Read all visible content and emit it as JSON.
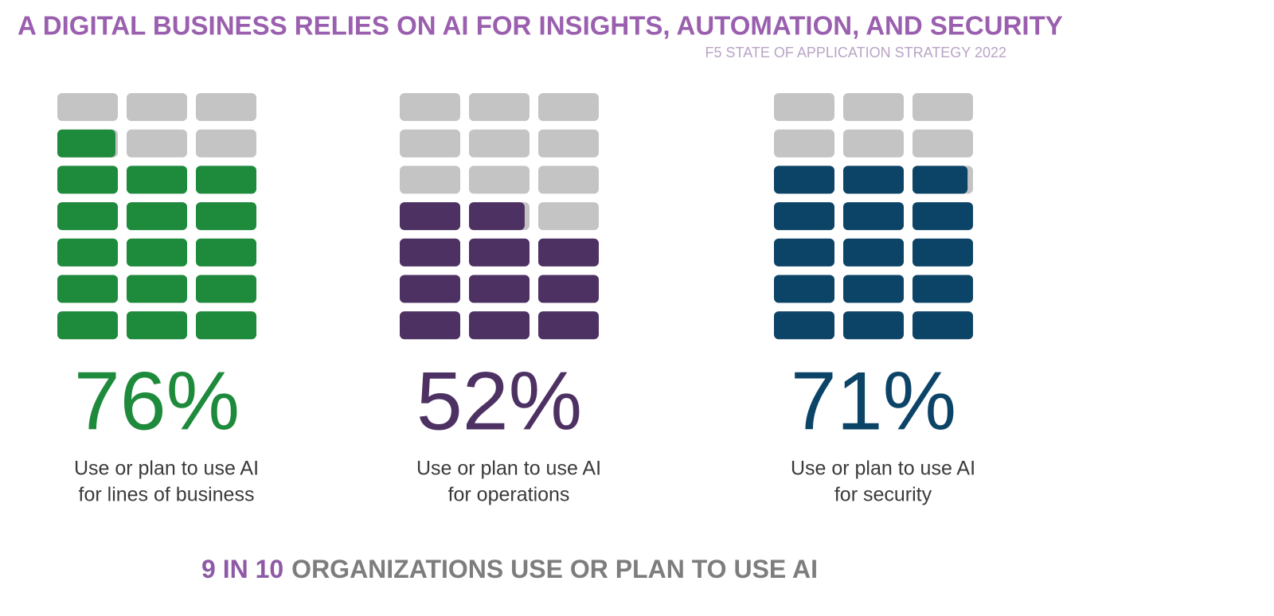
{
  "title": "A DIGITAL BUSINESS RELIES ON AI FOR INSIGHTS, AUTOMATION, AND SECURITY",
  "source": "F5 STATE OF APPLICATION STRATEGY 2022",
  "footer": {
    "highlight": "9 IN 10",
    "text": "ORGANIZATIONS USE OR PLAN TO USE AI"
  },
  "chart_data": [
    {
      "type": "waffle",
      "value": 76,
      "value_label": "76%",
      "color": "#1e8a3c",
      "caption": [
        "Use or plan to use AI",
        "for lines of business"
      ]
    },
    {
      "type": "waffle",
      "value": 52,
      "value_label": "52%",
      "color": "#4e3163",
      "caption": [
        "Use or plan to use AI",
        "for operations"
      ]
    },
    {
      "type": "waffle",
      "value": 71,
      "value_label": "71%",
      "color": "#0c4468",
      "caption": [
        "Use or plan to use AI",
        "for security"
      ]
    }
  ]
}
